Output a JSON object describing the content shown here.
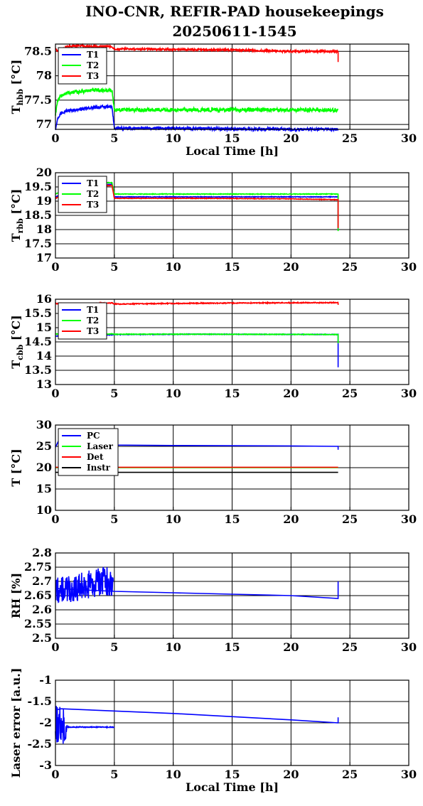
{
  "title": {
    "line1": "INO-CNR, REFIR-PAD housekeepings",
    "line2": "20250611-1545"
  },
  "chart_data": [
    {
      "type": "line",
      "ylabel": {
        "main": "T",
        "sub": "hbb",
        "unit": "[°C]"
      },
      "xlabel": "Local Time [h]",
      "xlim": [
        0,
        30
      ],
      "ylim": [
        76.9,
        78.65
      ],
      "xticks": [
        "0",
        "5",
        "10",
        "15",
        "20",
        "25",
        "30"
      ],
      "yticks": [
        {
          "v": 77,
          "label": "77"
        },
        {
          "v": 77.5,
          "label": "77.5"
        },
        {
          "v": 78,
          "label": "78"
        },
        {
          "v": 78.5,
          "label": "78.5"
        }
      ],
      "grid": true,
      "legend_position": "top-left",
      "series": [
        {
          "name": "T1",
          "color": "#0000ff",
          "noise": 0.03,
          "x": [
            0,
            0.15,
            0.5,
            1,
            2,
            3,
            4,
            4.8,
            5,
            5.6,
            10,
            15,
            20,
            24
          ],
          "y": [
            76.9,
            77.1,
            77.25,
            77.28,
            77.31,
            77.34,
            77.36,
            77.36,
            76.92,
            76.92,
            76.92,
            76.91,
            76.9,
            76.9
          ]
        },
        {
          "name": "T2",
          "color": "#00ff00",
          "noise": 0.04,
          "x": [
            0,
            0.15,
            0.5,
            1,
            2,
            3,
            4,
            4.8,
            5,
            5.6,
            10,
            15,
            20,
            24
          ],
          "y": [
            77.2,
            77.45,
            77.6,
            77.65,
            77.67,
            77.7,
            77.7,
            77.7,
            77.3,
            77.3,
            77.3,
            77.3,
            77.3,
            77.3
          ]
        },
        {
          "name": "T3",
          "color": "#ff0000",
          "noise": 0.02,
          "x": [
            0,
            0.2,
            1,
            2,
            3,
            4,
            4.8,
            5,
            5.6,
            10,
            15,
            20,
            23.9,
            24,
            24,
            24
          ],
          "y": [
            78.55,
            78.5,
            78.6,
            78.62,
            78.6,
            78.6,
            78.6,
            78.55,
            78.55,
            78.54,
            78.53,
            78.5,
            78.5,
            78.48,
            78.3,
            78.5
          ]
        }
      ]
    },
    {
      "type": "line",
      "ylabel": {
        "main": "T",
        "sub": "rbb",
        "unit": "[°C]"
      },
      "xlabel": "",
      "xlim": [
        0,
        30
      ],
      "ylim": [
        17,
        20
      ],
      "xticks": [
        "0",
        "5",
        "10",
        "15",
        "20",
        "25",
        "30"
      ],
      "yticks": [
        {
          "v": 17,
          "label": "17"
        },
        {
          "v": 17.5,
          "label": "17.5"
        },
        {
          "v": 18,
          "label": "18"
        },
        {
          "v": 18.5,
          "label": "18.5"
        },
        {
          "v": 19,
          "label": "19"
        },
        {
          "v": 19.5,
          "label": "19.5"
        },
        {
          "v": 20,
          "label": "20"
        }
      ],
      "grid": true,
      "legend_position": "top-left",
      "series": [
        {
          "name": "T1",
          "color": "#0000ff",
          "noise": 0.01,
          "x": [
            0,
            1,
            2,
            3,
            4,
            4.8,
            5,
            12,
            20,
            24,
            24,
            24
          ],
          "y": [
            19.15,
            19.3,
            19.4,
            19.5,
            19.55,
            19.6,
            19.15,
            19.15,
            19.15,
            19.15,
            18,
            19.1
          ]
        },
        {
          "name": "T2",
          "color": "#00ff00",
          "noise": 0.01,
          "x": [
            0,
            1,
            2,
            3,
            4,
            4.8,
            5,
            12,
            20,
            24,
            24,
            24
          ],
          "y": [
            19.25,
            19.45,
            19.55,
            19.6,
            19.65,
            19.65,
            19.25,
            19.25,
            19.25,
            19.25,
            17.95,
            19.25
          ]
        },
        {
          "name": "T3",
          "color": "#ff0000",
          "noise": 0.01,
          "x": [
            0,
            1,
            2,
            3,
            4,
            4.8,
            5,
            12,
            20,
            24,
            24
          ],
          "y": [
            19.1,
            19.3,
            19.4,
            19.5,
            19.55,
            19.55,
            19.1,
            19.1,
            19.08,
            19.05,
            18.05
          ]
        }
      ]
    },
    {
      "type": "line",
      "ylabel": {
        "main": "T",
        "sub": "cbb",
        "unit": "[°C]"
      },
      "xlabel": "",
      "xlim": [
        0,
        30
      ],
      "ylim": [
        13,
        16
      ],
      "xticks": [
        "0",
        "5",
        "10",
        "15",
        "20",
        "25",
        "30"
      ],
      "yticks": [
        {
          "v": 13,
          "label": "13"
        },
        {
          "v": 13.5,
          "label": "13.5"
        },
        {
          "v": 14,
          "label": "14"
        },
        {
          "v": 14.5,
          "label": "14.5"
        },
        {
          "v": 15,
          "label": "15"
        },
        {
          "v": 15.5,
          "label": "15.5"
        },
        {
          "v": 16,
          "label": "16"
        }
      ],
      "grid": true,
      "legend_position": "top-left",
      "series": [
        {
          "name": "T1",
          "color": "#0000ff",
          "noise": 0.01,
          "x": [
            0,
            1,
            3,
            4.8,
            5,
            12,
            24,
            24,
            24
          ],
          "y": [
            14.7,
            14.72,
            14.73,
            14.75,
            14.76,
            14.77,
            14.76,
            13.6,
            14.4
          ]
        },
        {
          "name": "T2",
          "color": "#00ff00",
          "noise": 0.01,
          "x": [
            0,
            1,
            3,
            4.8,
            5,
            12,
            24,
            24
          ],
          "y": [
            14.78,
            14.75,
            14.75,
            14.78,
            14.77,
            14.77,
            14.76,
            14.45
          ]
        },
        {
          "name": "T3",
          "color": "#ff0000",
          "noise": 0.015,
          "x": [
            0,
            1,
            3,
            4.8,
            5,
            12,
            24,
            24
          ],
          "y": [
            15.85,
            15.82,
            15.85,
            15.87,
            15.83,
            15.86,
            15.88,
            15.8
          ]
        }
      ]
    },
    {
      "type": "line",
      "ylabel": {
        "main": "T",
        "sub": "",
        "unit": "[°C]"
      },
      "xlabel": "",
      "xlim": [
        0,
        30
      ],
      "ylim": [
        10,
        30
      ],
      "xticks": [
        "0",
        "5",
        "10",
        "15",
        "20",
        "25",
        "30"
      ],
      "yticks": [
        {
          "v": 10,
          "label": "10"
        },
        {
          "v": 15,
          "label": "15"
        },
        {
          "v": 20,
          "label": "20"
        },
        {
          "v": 25,
          "label": "25"
        },
        {
          "v": 30,
          "label": "30"
        }
      ],
      "grid": true,
      "legend_position": "top-left",
      "series": [
        {
          "name": "PC",
          "color": "#0000ff",
          "noise": 0,
          "x": [
            0,
            0.3,
            1,
            5,
            10,
            20,
            24,
            24,
            24
          ],
          "y": [
            24.8,
            26.5,
            26,
            25.3,
            25.2,
            25.1,
            25,
            24.2,
            25
          ]
        },
        {
          "name": "Laser",
          "color": "#00ff00",
          "noise": 0,
          "x": [
            0,
            24
          ],
          "y": [
            20,
            20
          ]
        },
        {
          "name": "Det",
          "color": "#ff0000",
          "noise": 0,
          "x": [
            0,
            24
          ],
          "y": [
            20.1,
            20.1
          ]
        },
        {
          "name": "Instr",
          "color": "#000000",
          "noise": 0,
          "x": [
            0,
            24
          ],
          "y": [
            18.9,
            18.9
          ]
        }
      ]
    },
    {
      "type": "line",
      "ylabel": {
        "main": "RH [%]",
        "sub": "",
        "unit": ""
      },
      "xlabel": "",
      "xlim": [
        0,
        30
      ],
      "ylim": [
        2.5,
        2.8
      ],
      "xticks": [
        "0",
        "5",
        "10",
        "15",
        "20",
        "25",
        "30"
      ],
      "yticks": [
        {
          "v": 2.5,
          "label": "2.5"
        },
        {
          "v": 2.55,
          "label": "2.55"
        },
        {
          "v": 2.6,
          "label": "2.6"
        },
        {
          "v": 2.65,
          "label": "2.65"
        },
        {
          "v": 2.7,
          "label": "2.7"
        },
        {
          "v": 2.75,
          "label": "2.75"
        },
        {
          "v": 2.8,
          "label": "2.8"
        }
      ],
      "grid": true,
      "legend_position": "none",
      "series": [
        {
          "name": "",
          "color": "#0000ff",
          "noise": 0.05,
          "x": [
            0,
            1,
            2,
            3,
            4,
            4.9
          ],
          "y": [
            2.67,
            2.67,
            2.68,
            2.69,
            2.7,
            2.7
          ]
        },
        {
          "name": "",
          "color": "#0000ff",
          "noise": 0,
          "x": [
            0,
            5,
            10,
            15,
            20,
            24,
            24,
            24
          ],
          "y": [
            2.675,
            2.665,
            2.66,
            2.655,
            2.65,
            2.64,
            2.7,
            2.645
          ]
        }
      ]
    },
    {
      "type": "line",
      "ylabel": {
        "main": "Laser error [a.u.]",
        "sub": "",
        "unit": ""
      },
      "xlabel": "Local Time [h]",
      "xlim": [
        0,
        30
      ],
      "ylim": [
        -3,
        -1
      ],
      "xticks": [
        "0",
        "5",
        "10",
        "15",
        "20",
        "25",
        "30"
      ],
      "yticks": [
        {
          "v": -3,
          "label": "-3"
        },
        {
          "v": -2.5,
          "label": "-2.5"
        },
        {
          "v": -2,
          "label": "-2"
        },
        {
          "v": -1.5,
          "label": "-1.5"
        },
        {
          "v": -1,
          "label": "-1"
        }
      ],
      "grid": true,
      "legend_position": "none",
      "series": [
        {
          "name": "",
          "color": "#0000ff",
          "noise": 0.45,
          "x": [
            0,
            0.5,
            1
          ],
          "y": [
            -2.05,
            -2.05,
            -2.05
          ]
        },
        {
          "name": "",
          "color": "#0000ff",
          "noise": 0.01,
          "x": [
            1,
            5
          ],
          "y": [
            -2.1,
            -2.1
          ]
        },
        {
          "name": "",
          "color": "#0000ff",
          "noise": 0,
          "x": [
            0,
            0.5,
            10,
            20,
            24,
            24,
            24
          ],
          "y": [
            -1.7,
            -1.67,
            -1.78,
            -1.93,
            -2,
            -1.87,
            -2
          ]
        }
      ]
    }
  ]
}
